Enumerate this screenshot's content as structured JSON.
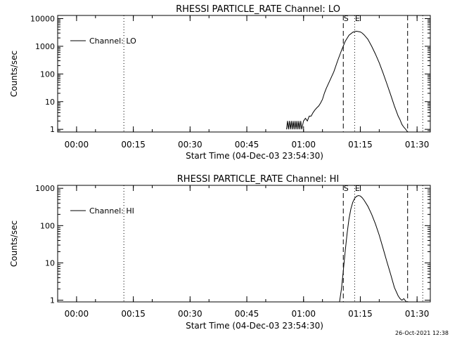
{
  "footer": {
    "timestamp": "26-Oct-2021 12:38"
  },
  "chart_data": [
    {
      "type": "line",
      "title": "RHESSI PARTICLE_RATE Channel: LO",
      "xlabel": "Start Time (04-Dec-03 23:54:30)",
      "ylabel": "Counts/sec",
      "y_scale": "log",
      "xlim": [
        "23:55:00",
        "01:33:30"
      ],
      "ylim": [
        0.8,
        13000
      ],
      "x_ticks": [
        "00:00",
        "00:15",
        "00:30",
        "00:45",
        "01:00",
        "01:15",
        "01:30"
      ],
      "y_ticks": [
        "1",
        "10",
        "100",
        "1000",
        "10000"
      ],
      "legend": {
        "position": "top-left",
        "entries": [
          "Channel: LO"
        ]
      },
      "markers": [
        {
          "x": "00:12:30",
          "style": "dotted",
          "label": ""
        },
        {
          "x": "01:10:30",
          "style": "dashed",
          "label": "S"
        },
        {
          "x": "01:13:30",
          "style": "dotted",
          "label": "E"
        },
        {
          "x": "01:27:30",
          "style": "dashed",
          "label": ""
        },
        {
          "x": "01:31:30",
          "style": "dotted",
          "label": ""
        }
      ],
      "series": [
        {
          "x": [
            "00:55:30",
            "00:55:45",
            "00:56:00",
            "00:56:15",
            "00:56:30",
            "00:56:45",
            "00:57:00",
            "00:57:15",
            "00:57:30",
            "00:57:45",
            "00:58:00",
            "00:58:15",
            "00:58:30",
            "00:58:45",
            "00:59:00",
            "00:59:15",
            "00:59:30",
            "01:00:00",
            "01:00:30",
            "01:01:00",
            "01:01:30",
            "01:02:00",
            "01:02:30",
            "01:03:00",
            "01:03:30",
            "01:04:00",
            "01:04:30",
            "01:05:00",
            "01:05:30",
            "01:06:00",
            "01:07:00",
            "01:08:00",
            "01:09:00",
            "01:10:00",
            "01:11:00",
            "01:12:00",
            "01:13:00",
            "01:13:30",
            "01:14:00",
            "01:14:30",
            "01:15:00",
            "01:15:30",
            "01:16:00",
            "01:17:00",
            "01:18:00",
            "01:19:00",
            "01:20:00",
            "01:21:00",
            "01:22:00",
            "01:23:00",
            "01:24:00",
            "01:25:00",
            "01:25:30",
            "01:26:00",
            "01:26:30",
            "01:27:00",
            "01:27:15",
            "01:27:30"
          ],
          "y": [
            1,
            2,
            1,
            2,
            1,
            2,
            1,
            2,
            1,
            2,
            1,
            2,
            1,
            2,
            1,
            2,
            1,
            2,
            2.5,
            2,
            3,
            3,
            4,
            5,
            6,
            7,
            9,
            12,
            20,
            30,
            60,
            120,
            300,
            700,
            1500,
            2500,
            3200,
            3400,
            3500,
            3400,
            3300,
            3000,
            2600,
            1800,
            1000,
            520,
            250,
            110,
            45,
            18,
            7,
            3,
            2.2,
            1.5,
            1.2,
            1,
            0.9,
            0.8
          ]
        }
      ]
    },
    {
      "type": "line",
      "title": "RHESSI PARTICLE_RATE Channel: HI",
      "xlabel": "Start Time (04-Dec-03 23:54:30)",
      "ylabel": "Counts/sec",
      "y_scale": "log",
      "xlim": [
        "23:55:00",
        "01:33:30"
      ],
      "ylim": [
        0.9,
        1200
      ],
      "x_ticks": [
        "00:00",
        "00:15",
        "00:30",
        "00:45",
        "01:00",
        "01:15",
        "01:30"
      ],
      "y_ticks": [
        "1",
        "10",
        "100",
        "1000"
      ],
      "legend": {
        "position": "top-left",
        "entries": [
          "Channel: HI"
        ]
      },
      "markers": [
        {
          "x": "00:12:30",
          "style": "dotted",
          "label": ""
        },
        {
          "x": "01:10:30",
          "style": "dashed",
          "label": "S"
        },
        {
          "x": "01:13:30",
          "style": "dotted",
          "label": "E"
        },
        {
          "x": "01:27:30",
          "style": "dashed",
          "label": ""
        },
        {
          "x": "01:31:30",
          "style": "dotted",
          "label": ""
        }
      ],
      "series": [
        {
          "x": [
            "01:09:30",
            "01:10:00",
            "01:10:30",
            "01:11:00",
            "01:11:30",
            "01:12:00",
            "01:12:30",
            "01:13:00",
            "01:13:30",
            "01:14:00",
            "01:14:30",
            "01:15:00",
            "01:15:30",
            "01:16:00",
            "01:17:00",
            "01:18:00",
            "01:19:00",
            "01:20:00",
            "01:21:00",
            "01:22:00",
            "01:23:00",
            "01:24:00",
            "01:25:00",
            "01:25:30",
            "01:26:00",
            "01:26:30",
            "01:27:00",
            "01:27:15"
          ],
          "y": [
            0.9,
            2,
            6,
            20,
            60,
            150,
            280,
            420,
            540,
            610,
            640,
            620,
            560,
            480,
            330,
            200,
            110,
            55,
            25,
            11,
            5,
            2.2,
            1.3,
            1.1,
            1,
            1.1,
            0.95,
            0.9
          ]
        }
      ]
    }
  ]
}
